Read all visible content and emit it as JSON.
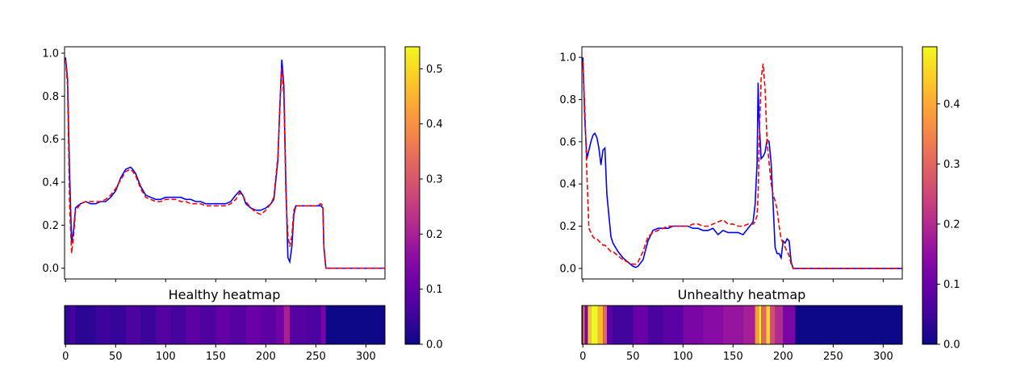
{
  "figure": {
    "background": "#ffffff"
  },
  "chart_data": [
    {
      "type": "line",
      "panel": "left",
      "title": "",
      "xlabel": "",
      "ylabel": "",
      "xlim": [
        -1,
        319
      ],
      "ylim": [
        -0.05,
        1.03
      ],
      "x_ticks": [],
      "y_ticks": [
        0.0,
        0.2,
        0.4,
        0.6,
        0.8,
        1.0
      ],
      "y_tick_labels": [
        "0.0",
        "0.2",
        "0.4",
        "0.6",
        "0.8",
        "1.0"
      ],
      "grid": false,
      "series": [
        {
          "color": "#0000ff",
          "style": "solid",
          "x": [
            0,
            2,
            4,
            6,
            8,
            10,
            12,
            15,
            20,
            25,
            30,
            35,
            40,
            45,
            50,
            55,
            60,
            65,
            67,
            70,
            75,
            80,
            85,
            90,
            95,
            100,
            105,
            110,
            115,
            120,
            125,
            130,
            135,
            140,
            145,
            150,
            155,
            160,
            165,
            170,
            174,
            177,
            180,
            185,
            190,
            195,
            200,
            205,
            208,
            212,
            214,
            216,
            218,
            220,
            222,
            224,
            226,
            228,
            230,
            235,
            240,
            245,
            250,
            255,
            257,
            258,
            260,
            270,
            280,
            290,
            300,
            310,
            319
          ],
          "y": [
            0.98,
            0.88,
            0.45,
            0.12,
            0.18,
            0.28,
            0.29,
            0.3,
            0.31,
            0.3,
            0.3,
            0.31,
            0.31,
            0.33,
            0.36,
            0.42,
            0.46,
            0.47,
            0.46,
            0.44,
            0.38,
            0.34,
            0.33,
            0.32,
            0.32,
            0.33,
            0.33,
            0.33,
            0.33,
            0.32,
            0.32,
            0.31,
            0.31,
            0.3,
            0.3,
            0.3,
            0.3,
            0.3,
            0.31,
            0.34,
            0.36,
            0.34,
            0.3,
            0.28,
            0.27,
            0.27,
            0.28,
            0.3,
            0.32,
            0.5,
            0.75,
            0.97,
            0.85,
            0.4,
            0.05,
            0.03,
            0.1,
            0.25,
            0.29,
            0.29,
            0.29,
            0.29,
            0.29,
            0.29,
            0.28,
            0.1,
            0.0,
            0.0,
            0.0,
            0.0,
            0.0,
            0.0,
            0.0
          ]
        },
        {
          "color": "#ff0000",
          "style": "dashed",
          "x": [
            0,
            2,
            4,
            6,
            8,
            10,
            12,
            15,
            20,
            25,
            30,
            35,
            40,
            45,
            50,
            55,
            60,
            65,
            67,
            70,
            75,
            80,
            85,
            90,
            95,
            100,
            105,
            110,
            115,
            120,
            125,
            130,
            135,
            140,
            145,
            150,
            155,
            160,
            165,
            170,
            174,
            177,
            180,
            185,
            190,
            195,
            200,
            205,
            208,
            212,
            214,
            216,
            218,
            220,
            222,
            224,
            226,
            228,
            230,
            235,
            240,
            245,
            250,
            255,
            257,
            258,
            260,
            270,
            280,
            290,
            300,
            310,
            319
          ],
          "y": [
            0.97,
            0.85,
            0.3,
            0.07,
            0.15,
            0.27,
            0.28,
            0.3,
            0.31,
            0.31,
            0.31,
            0.31,
            0.32,
            0.34,
            0.37,
            0.41,
            0.45,
            0.46,
            0.45,
            0.43,
            0.37,
            0.33,
            0.32,
            0.31,
            0.31,
            0.32,
            0.32,
            0.32,
            0.31,
            0.31,
            0.3,
            0.3,
            0.3,
            0.29,
            0.29,
            0.29,
            0.29,
            0.29,
            0.3,
            0.32,
            0.35,
            0.34,
            0.31,
            0.28,
            0.26,
            0.25,
            0.27,
            0.3,
            0.33,
            0.52,
            0.74,
            0.93,
            0.8,
            0.35,
            0.15,
            0.1,
            0.15,
            0.27,
            0.29,
            0.29,
            0.29,
            0.29,
            0.29,
            0.3,
            0.29,
            0.1,
            0.0,
            0.0,
            0.0,
            0.0,
            0.0,
            0.0,
            0.0
          ]
        }
      ]
    },
    {
      "type": "line",
      "panel": "right",
      "title": "",
      "xlabel": "",
      "ylabel": "",
      "xlim": [
        -1,
        319
      ],
      "ylim": [
        -0.05,
        1.05
      ],
      "x_ticks": [],
      "y_ticks": [
        0.0,
        0.2,
        0.4,
        0.6,
        0.8,
        1.0
      ],
      "y_tick_labels": [
        "0.0",
        "0.2",
        "0.4",
        "0.6",
        "0.8",
        "1.0"
      ],
      "grid": false,
      "series": [
        {
          "color": "#0000ff",
          "style": "solid",
          "x": [
            0,
            2,
            4,
            6,
            8,
            10,
            12,
            14,
            16,
            18,
            20,
            22,
            24,
            26,
            28,
            30,
            35,
            40,
            45,
            50,
            53,
            55,
            60,
            65,
            70,
            75,
            80,
            85,
            90,
            95,
            100,
            105,
            110,
            115,
            120,
            125,
            130,
            135,
            140,
            145,
            150,
            155,
            160,
            165,
            170,
            172,
            174,
            175,
            176,
            178,
            180,
            182,
            184,
            186,
            188,
            190,
            192,
            194,
            196,
            198,
            200,
            202,
            204,
            206,
            208,
            210,
            212,
            220,
            230,
            240,
            250,
            260,
            270,
            280,
            290,
            300,
            310,
            319
          ],
          "y": [
            1.0,
            0.7,
            0.52,
            0.56,
            0.6,
            0.63,
            0.64,
            0.62,
            0.57,
            0.49,
            0.56,
            0.57,
            0.35,
            0.25,
            0.15,
            0.12,
            0.08,
            0.05,
            0.03,
            0.01,
            0.005,
            0.01,
            0.04,
            0.13,
            0.18,
            0.19,
            0.19,
            0.19,
            0.2,
            0.2,
            0.2,
            0.2,
            0.19,
            0.19,
            0.18,
            0.18,
            0.19,
            0.16,
            0.18,
            0.17,
            0.17,
            0.17,
            0.16,
            0.19,
            0.22,
            0.3,
            0.5,
            0.88,
            0.7,
            0.52,
            0.53,
            0.55,
            0.61,
            0.6,
            0.5,
            0.3,
            0.1,
            0.07,
            0.07,
            0.05,
            0.13,
            0.12,
            0.14,
            0.13,
            0.03,
            0.0,
            0.0,
            0.0,
            0.0,
            0.0,
            0.0,
            0.0,
            0.0,
            0.0,
            0.0,
            0.0,
            0.0,
            0.0
          ]
        },
        {
          "color": "#ff0000",
          "style": "dashed",
          "x": [
            0,
            2,
            4,
            6,
            8,
            10,
            12,
            14,
            16,
            18,
            20,
            22,
            24,
            26,
            28,
            30,
            35,
            40,
            45,
            50,
            53,
            55,
            60,
            65,
            70,
            75,
            80,
            85,
            90,
            95,
            100,
            105,
            110,
            115,
            120,
            125,
            130,
            135,
            140,
            145,
            150,
            155,
            160,
            165,
            170,
            172,
            174,
            175,
            176,
            178,
            180,
            182,
            184,
            186,
            188,
            190,
            192,
            194,
            196,
            198,
            200,
            202,
            204,
            206,
            208,
            210,
            212,
            220,
            230,
            240,
            250,
            260,
            270,
            280,
            290,
            300,
            310,
            319
          ],
          "y": [
            0.98,
            0.75,
            0.45,
            0.19,
            0.17,
            0.15,
            0.14,
            0.14,
            0.13,
            0.12,
            0.11,
            0.11,
            0.1,
            0.09,
            0.08,
            0.08,
            0.06,
            0.04,
            0.03,
            0.02,
            0.02,
            0.03,
            0.08,
            0.15,
            0.17,
            0.18,
            0.19,
            0.2,
            0.2,
            0.2,
            0.2,
            0.2,
            0.21,
            0.21,
            0.2,
            0.2,
            0.21,
            0.22,
            0.23,
            0.21,
            0.21,
            0.2,
            0.2,
            0.21,
            0.21,
            0.22,
            0.25,
            0.35,
            0.6,
            0.9,
            0.97,
            0.85,
            0.6,
            0.5,
            0.4,
            0.35,
            0.32,
            0.28,
            0.2,
            0.14,
            0.12,
            0.1,
            0.08,
            0.06,
            0.02,
            0.0,
            0.0,
            0.0,
            0.0,
            0.0,
            0.0,
            0.0,
            0.0,
            0.0,
            0.0,
            0.0,
            0.0,
            0.0
          ]
        }
      ]
    },
    {
      "type": "heatmap",
      "panel": "left-heatmap",
      "title": "Healthy heatmap",
      "xlim": [
        -1,
        319
      ],
      "x_ticks": [
        0,
        50,
        100,
        150,
        200,
        250,
        300
      ],
      "x_tick_labels": [
        "0",
        "50",
        "100",
        "150",
        "200",
        "250",
        "300"
      ],
      "colormap": "plasma",
      "vmin": 0.0,
      "vmax": 0.54,
      "colorbar_ticks": [
        0.0,
        0.1,
        0.2,
        0.3,
        0.4,
        0.5
      ],
      "colorbar_tick_labels": [
        "0.0",
        "0.1",
        "0.2",
        "0.3",
        "0.4",
        "0.5"
      ],
      "segments": [
        {
          "x0": 0,
          "x1": 5,
          "v": 0.04
        },
        {
          "x0": 5,
          "x1": 10,
          "v": 0.06
        },
        {
          "x0": 10,
          "x1": 30,
          "v": 0.03
        },
        {
          "x0": 30,
          "x1": 45,
          "v": 0.05
        },
        {
          "x0": 45,
          "x1": 60,
          "v": 0.04
        },
        {
          "x0": 60,
          "x1": 75,
          "v": 0.07
        },
        {
          "x0": 75,
          "x1": 90,
          "v": 0.05
        },
        {
          "x0": 90,
          "x1": 105,
          "v": 0.08
        },
        {
          "x0": 105,
          "x1": 120,
          "v": 0.06
        },
        {
          "x0": 120,
          "x1": 135,
          "v": 0.09
        },
        {
          "x0": 135,
          "x1": 150,
          "v": 0.07
        },
        {
          "x0": 150,
          "x1": 165,
          "v": 0.1
        },
        {
          "x0": 165,
          "x1": 180,
          "v": 0.08
        },
        {
          "x0": 180,
          "x1": 195,
          "v": 0.11
        },
        {
          "x0": 195,
          "x1": 210,
          "v": 0.09
        },
        {
          "x0": 210,
          "x1": 218,
          "v": 0.12
        },
        {
          "x0": 218,
          "x1": 224,
          "v": 0.2
        },
        {
          "x0": 224,
          "x1": 240,
          "v": 0.08
        },
        {
          "x0": 240,
          "x1": 255,
          "v": 0.07
        },
        {
          "x0": 255,
          "x1": 260,
          "v": 0.13
        },
        {
          "x0": 260,
          "x1": 319,
          "v": 0.0
        }
      ]
    },
    {
      "type": "heatmap",
      "panel": "right-heatmap",
      "title": "Unhealthy heatmap",
      "xlim": [
        -1,
        319
      ],
      "x_ticks": [
        0,
        50,
        100,
        150,
        200,
        250,
        300
      ],
      "x_tick_labels": [
        "0",
        "50",
        "100",
        "150",
        "200",
        "250",
        "300"
      ],
      "colormap": "plasma",
      "vmin": 0.0,
      "vmax": 0.495,
      "colorbar_ticks": [
        0.0,
        0.1,
        0.2,
        0.3,
        0.4
      ],
      "colorbar_tick_labels": [
        "0.0",
        "0.1",
        "0.2",
        "0.3",
        "0.4"
      ],
      "segments": [
        {
          "x0": 0,
          "x1": 2,
          "v": 0.3
        },
        {
          "x0": 2,
          "x1": 5,
          "v": 0.12
        },
        {
          "x0": 5,
          "x1": 8,
          "v": 0.43
        },
        {
          "x0": 8,
          "x1": 15,
          "v": 0.49
        },
        {
          "x0": 15,
          "x1": 20,
          "v": 0.42
        },
        {
          "x0": 20,
          "x1": 24,
          "v": 0.3
        },
        {
          "x0": 24,
          "x1": 30,
          "v": 0.08
        },
        {
          "x0": 30,
          "x1": 50,
          "v": 0.05
        },
        {
          "x0": 50,
          "x1": 65,
          "v": 0.1
        },
        {
          "x0": 65,
          "x1": 80,
          "v": 0.06
        },
        {
          "x0": 80,
          "x1": 100,
          "v": 0.08
        },
        {
          "x0": 100,
          "x1": 120,
          "v": 0.12
        },
        {
          "x0": 120,
          "x1": 140,
          "v": 0.14
        },
        {
          "x0": 140,
          "x1": 160,
          "v": 0.16
        },
        {
          "x0": 160,
          "x1": 172,
          "v": 0.18
        },
        {
          "x0": 172,
          "x1": 176,
          "v": 0.38
        },
        {
          "x0": 176,
          "x1": 178,
          "v": 0.49
        },
        {
          "x0": 178,
          "x1": 183,
          "v": 0.3
        },
        {
          "x0": 183,
          "x1": 187,
          "v": 0.45
        },
        {
          "x0": 187,
          "x1": 192,
          "v": 0.26
        },
        {
          "x0": 192,
          "x1": 200,
          "v": 0.2
        },
        {
          "x0": 200,
          "x1": 212,
          "v": 0.12
        },
        {
          "x0": 212,
          "x1": 319,
          "v": 0.0
        }
      ]
    }
  ]
}
